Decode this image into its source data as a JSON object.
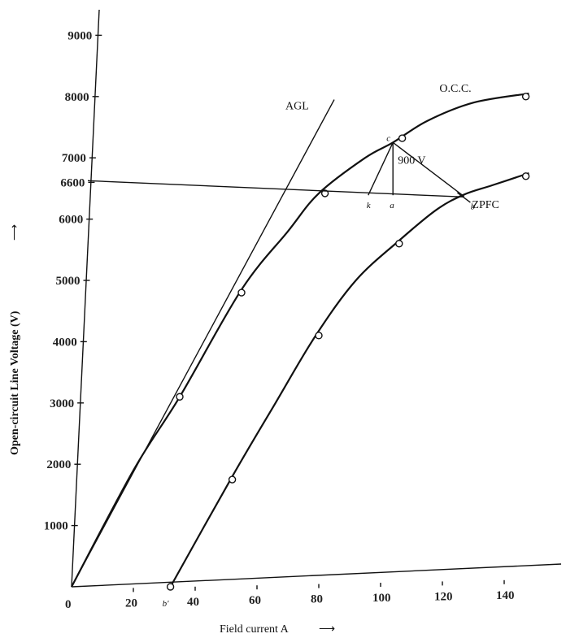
{
  "chart_data": {
    "type": "line",
    "title": "",
    "xlabel": "Field current A",
    "ylabel": "Open-circuit Line Voltage (V)",
    "xlim": [
      0,
      150
    ],
    "ylim": [
      0,
      9000
    ],
    "x_ticks": [
      "0",
      "20",
      "40",
      "60",
      "80",
      "100",
      "120",
      "140"
    ],
    "y_ticks": [
      "1000",
      "2000",
      "3000",
      "4000",
      "5000",
      "6000",
      "6600",
      "7000",
      "8000",
      "9000"
    ],
    "series": [
      {
        "name": "O.C.C.",
        "curve": [
          [
            0,
            0
          ],
          [
            20,
            1900
          ],
          [
            35,
            3100
          ],
          [
            55,
            4850
          ],
          [
            70,
            5800
          ],
          [
            80,
            6420
          ],
          [
            95,
            7000
          ],
          [
            104,
            7250
          ],
          [
            115,
            7600
          ],
          [
            130,
            7900
          ],
          [
            148,
            8050
          ]
        ],
        "points": [
          [
            35,
            3100
          ],
          [
            55,
            4800
          ],
          [
            82,
            6420
          ],
          [
            107,
            7320
          ],
          [
            147,
            8000
          ]
        ]
      },
      {
        "name": "ZPFC",
        "curve": [
          [
            32,
            0
          ],
          [
            52,
            1800
          ],
          [
            66,
            3000
          ],
          [
            79,
            4100
          ],
          [
            92,
            5000
          ],
          [
            106,
            5650
          ],
          [
            118,
            6150
          ],
          [
            127,
            6400
          ],
          [
            136,
            6550
          ],
          [
            148,
            6750
          ]
        ],
        "points": [
          [
            32,
            0
          ],
          [
            52,
            1750
          ],
          [
            80,
            4100
          ],
          [
            106,
            5600
          ],
          [
            147,
            6700
          ]
        ]
      },
      {
        "name": "AGL",
        "curve": [
          [
            0,
            0
          ],
          [
            85,
            7950
          ]
        ],
        "points": []
      }
    ],
    "annotations": {
      "horizontal_line": {
        "y": 6600
      },
      "labels": {
        "c": "c",
        "k": "k",
        "a": "a",
        "b": "b",
        "b_prime": "b'",
        "drop": "900 V"
      }
    }
  }
}
